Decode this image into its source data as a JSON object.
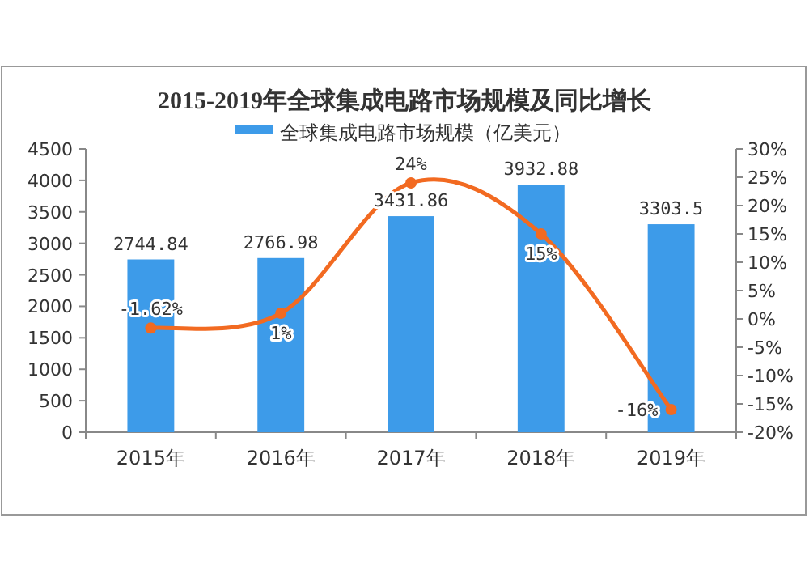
{
  "chart_data": {
    "type": "bar",
    "title": "2015-2019年全球集成电路市场规模及同比增长",
    "categories": [
      "2015年",
      "2016年",
      "2017年",
      "2018年",
      "2019年"
    ],
    "series": [
      {
        "name": "全球集成电路市场规模（亿美元）",
        "color": "#3d9be9",
        "values": [
          2744.84,
          2766.98,
          3431.86,
          3932.88,
          3303.5
        ],
        "value_labels": [
          "2744.84",
          "2766.98",
          "3431.86",
          "3932.88",
          "3303.5"
        ]
      },
      {
        "type": "line",
        "axis": "y2",
        "color": "#f26a21",
        "values": [
          -1.62,
          1,
          24,
          15,
          -16
        ],
        "value_labels": [
          "-1.62%",
          "1%",
          "24%",
          "15%",
          "-16%"
        ]
      }
    ],
    "ylim": [
      0,
      4500
    ],
    "yticks": [
      0,
      500,
      1000,
      1500,
      2000,
      2500,
      3000,
      3500,
      4000,
      4500
    ],
    "y2lim": [
      -20,
      30
    ],
    "y2ticks": [
      {
        "value": -20,
        "label": "-20%"
      },
      {
        "value": -15,
        "label": "-15%"
      },
      {
        "value": -10,
        "label": "-10%"
      },
      {
        "value": -5,
        "label": "-5%"
      },
      {
        "value": 0,
        "label": "0%"
      },
      {
        "value": 5,
        "label": "5%"
      },
      {
        "value": 10,
        "label": "10%"
      },
      {
        "value": 15,
        "label": "15%"
      },
      {
        "value": 20,
        "label": "20%"
      },
      {
        "value": 25,
        "label": "25%"
      },
      {
        "value": 30,
        "label": "30%"
      }
    ],
    "marker": "circle",
    "legend": "top",
    "grid": false
  }
}
